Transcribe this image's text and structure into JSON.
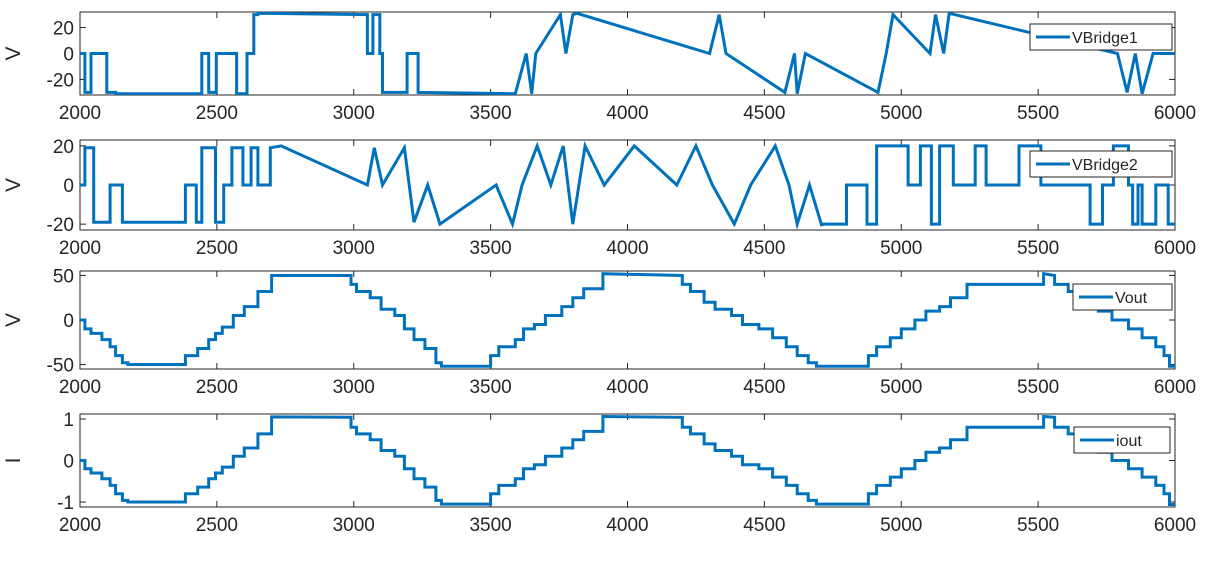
{
  "figure": {
    "background": "#ffffff",
    "axes_color": "#262626",
    "line_color": "#0072BD",
    "panel_count": 4
  },
  "chart_data": [
    {
      "type": "line",
      "ylabel": "V",
      "xlim": [
        2000,
        6000
      ],
      "ylim": [
        -32,
        32
      ],
      "xticks": [
        2000,
        2500,
        3000,
        3500,
        4000,
        4500,
        5000,
        5500,
        6000
      ],
      "yticks": [
        -20,
        0,
        20
      ],
      "legend": {
        "labels": [
          "VBridge1"
        ],
        "placement": "top-right"
      },
      "grid": false,
      "series": [
        {
          "name": "VBridge1",
          "color": "#0072BD",
          "x": [
            2000,
            2018,
            2018,
            2040,
            2040,
            2098,
            2098,
            2130,
            2130,
            2445,
            2445,
            2470,
            2470,
            2498,
            2498,
            2572,
            2572,
            2610,
            2610,
            2635,
            2635,
            2650,
            2650,
            3050,
            3050,
            3070,
            3070,
            3095,
            3095,
            3105,
            3105,
            3195,
            3195,
            3235,
            3235,
            3590,
            3590,
            3630,
            3630,
            3650,
            3650,
            3665,
            3665,
            3755,
            3755,
            3775,
            3775,
            3800,
            3800,
            3815,
            3815,
            4300,
            4300,
            4335,
            4335,
            4360,
            4360,
            4575,
            4575,
            4610,
            4610,
            4620,
            4620,
            4650,
            4650,
            4915,
            4915,
            4945,
            4945,
            4970,
            4970,
            5105,
            5105,
            5125,
            5125,
            5155,
            5155,
            5175,
            5175,
            5790,
            5790,
            5825,
            5825,
            5855,
            5855,
            5880,
            5880,
            5920,
            5920,
            6000
          ],
          "y": [
            0,
            0,
            -30,
            -30,
            0,
            0,
            -30,
            -30,
            -31,
            -31,
            0,
            0,
            -30,
            -30,
            0,
            0,
            -31,
            -31,
            0,
            0,
            30,
            30,
            31,
            30,
            0,
            0,
            30,
            30,
            0,
            0,
            -30,
            -30,
            0,
            0,
            -30,
            -31,
            -31,
            0,
            0,
            -31,
            -31,
            0,
            0,
            30,
            30,
            0,
            0,
            30,
            30,
            31,
            31,
            0,
            0,
            30,
            30,
            0,
            0,
            -30,
            -30,
            0,
            0,
            -31,
            -31,
            0,
            0,
            -30,
            -30,
            0,
            0,
            30,
            30,
            0,
            0,
            30,
            30,
            0,
            0,
            31,
            31,
            0,
            0,
            -30,
            -30,
            0,
            0,
            -31,
            -31,
            0,
            0,
            0
          ]
        }
      ]
    },
    {
      "type": "line",
      "ylabel": "V",
      "xlim": [
        2000,
        6000
      ],
      "ylim": [
        -23,
        23
      ],
      "xticks": [
        2000,
        2500,
        3000,
        3500,
        4000,
        4500,
        5000,
        5500,
        6000
      ],
      "yticks": [
        -20,
        0,
        20
      ],
      "legend": {
        "labels": [
          "VBridge2"
        ],
        "placement": "top-right"
      },
      "grid": false,
      "series": [
        {
          "name": "VBridge2",
          "color": "#0072BD",
          "x": [
            2000,
            2018,
            2018,
            2050,
            2050,
            2110,
            2110,
            2155,
            2155,
            2385,
            2385,
            2425,
            2425,
            2445,
            2445,
            2495,
            2495,
            2525,
            2525,
            2555,
            2555,
            2595,
            2595,
            2625,
            2625,
            2650,
            2650,
            2695,
            2695,
            2735,
            2735,
            3050,
            3050,
            3075,
            3075,
            3105,
            3105,
            3185,
            3185,
            3220,
            3220,
            3270,
            3270,
            3315,
            3315,
            3520,
            3520,
            3580,
            3580,
            3615,
            3615,
            3670,
            3670,
            3720,
            3720,
            3765,
            3765,
            3800,
            3800,
            3845,
            3845,
            3915,
            3915,
            4025,
            4025,
            4180,
            4180,
            4250,
            4250,
            4310,
            4310,
            4390,
            4390,
            4450,
            4450,
            4540,
            4540,
            4590,
            4590,
            4620,
            4620,
            4665,
            4665,
            4710,
            4710,
            4800,
            4800,
            4875,
            4875,
            4910,
            4910,
            5025,
            5025,
            5070,
            5070,
            5110,
            5110,
            5140,
            5140,
            5190,
            5190,
            5270,
            5270,
            5310,
            5310,
            5430,
            5430,
            5510,
            5510,
            5690,
            5690,
            5735,
            5735,
            5775,
            5775,
            5830,
            5830,
            5845,
            5845,
            5865,
            5865,
            5880,
            5880,
            5930,
            5930,
            5975,
            5975,
            6000
          ],
          "y": [
            0,
            0,
            19,
            19,
            -19,
            -19,
            0,
            0,
            -19,
            -19,
            0,
            0,
            -19,
            -19,
            19,
            19,
            -19,
            -19,
            0,
            0,
            19,
            19,
            0,
            0,
            19,
            19,
            0,
            0,
            19,
            20,
            20,
            0,
            0,
            19,
            19,
            0,
            0,
            19,
            19,
            -19,
            -19,
            0,
            0,
            -20,
            -20,
            0,
            0,
            -20,
            -20,
            0,
            0,
            20,
            20,
            0,
            0,
            20,
            20,
            -20,
            -20,
            20,
            20,
            0,
            0,
            20,
            20,
            0,
            0,
            20,
            20,
            0,
            0,
            -20,
            -20,
            0,
            0,
            20,
            20,
            0,
            0,
            -20,
            -20,
            0,
            0,
            -21,
            -20,
            -20,
            0,
            0,
            -20,
            -20,
            20,
            20,
            0,
            0,
            20,
            20,
            -20,
            -20,
            20,
            20,
            0,
            0,
            20,
            20,
            0,
            0,
            20,
            20,
            0,
            0,
            -20,
            -20,
            0,
            0,
            20,
            20,
            0,
            0,
            -20,
            -20,
            0,
            0,
            -20,
            -20,
            0,
            0,
            -20,
            -20
          ]
        }
      ]
    },
    {
      "type": "line",
      "ylabel": "V",
      "xlim": [
        2000,
        6000
      ],
      "ylim": [
        -55,
        55
      ],
      "xticks": [
        2000,
        2500,
        3000,
        3500,
        4000,
        4500,
        5000,
        5500,
        6000
      ],
      "yticks": [
        -50,
        0,
        50
      ],
      "legend": {
        "labels": [
          "Vout"
        ],
        "placement": "top-right"
      },
      "grid": false,
      "series": [
        {
          "name": "Vout",
          "color": "#0072BD",
          "x": [
            2000,
            2018,
            2018,
            2040,
            2040,
            2080,
            2080,
            2110,
            2110,
            2130,
            2130,
            2155,
            2155,
            2175,
            2175,
            2385,
            2385,
            2430,
            2430,
            2470,
            2470,
            2495,
            2495,
            2520,
            2520,
            2560,
            2560,
            2600,
            2600,
            2650,
            2650,
            2700,
            2700,
            2990,
            2990,
            3010,
            3010,
            3060,
            3060,
            3100,
            3100,
            3150,
            3150,
            3185,
            3185,
            3220,
            3220,
            3260,
            3260,
            3300,
            3300,
            3320,
            3320,
            3500,
            3500,
            3530,
            3530,
            3590,
            3590,
            3620,
            3620,
            3660,
            3660,
            3700,
            3700,
            3760,
            3760,
            3800,
            3800,
            3840,
            3840,
            3910,
            3910,
            4200,
            4200,
            4230,
            4230,
            4280,
            4280,
            4320,
            4320,
            4380,
            4380,
            4420,
            4420,
            4480,
            4480,
            4530,
            4530,
            4580,
            4580,
            4620,
            4620,
            4660,
            4660,
            4690,
            4690,
            4880,
            4880,
            4910,
            4910,
            4960,
            4960,
            5000,
            5000,
            5050,
            5050,
            5090,
            5090,
            5140,
            5140,
            5180,
            5180,
            5240,
            5240,
            5520,
            5520,
            5560,
            5560,
            5610,
            5610,
            5660,
            5660,
            5720,
            5720,
            5770,
            5770,
            5830,
            5830,
            5880,
            5880,
            5930,
            5930,
            5960,
            5960,
            5980,
            5980,
            6000
          ],
          "y": [
            0,
            0,
            -10,
            -10,
            -15,
            -15,
            -22,
            -22,
            -30,
            -30,
            -40,
            -40,
            -48,
            -48,
            -50,
            -50,
            -40,
            -40,
            -32,
            -32,
            -22,
            -22,
            -15,
            -15,
            -8,
            -8,
            5,
            5,
            15,
            15,
            32,
            32,
            50,
            50,
            40,
            40,
            32,
            32,
            25,
            25,
            12,
            12,
            5,
            5,
            -10,
            -10,
            -22,
            -22,
            -32,
            -32,
            -48,
            -48,
            -52,
            -52,
            -40,
            -40,
            -30,
            -30,
            -22,
            -22,
            -10,
            -10,
            -5,
            -5,
            5,
            5,
            15,
            15,
            25,
            25,
            35,
            35,
            52,
            50,
            40,
            40,
            32,
            32,
            20,
            20,
            12,
            12,
            5,
            5,
            -5,
            -5,
            -10,
            -10,
            -20,
            -20,
            -30,
            -30,
            -40,
            -40,
            -48,
            -48,
            -52,
            -52,
            -40,
            -40,
            -30,
            -30,
            -20,
            -20,
            -10,
            -10,
            0,
            0,
            10,
            10,
            15,
            15,
            25,
            25,
            40,
            40,
            52,
            50,
            40,
            40,
            32,
            32,
            22,
            22,
            10,
            10,
            0,
            0,
            -10,
            -10,
            -20,
            -20,
            -30,
            -30,
            -40,
            -40,
            -52,
            -52
          ]
        }
      ]
    },
    {
      "type": "line",
      "ylabel": "I",
      "xlim": [
        2000,
        6000
      ],
      "ylim": [
        -1.12,
        1.12
      ],
      "xticks": [
        2000,
        2500,
        3000,
        3500,
        4000,
        4500,
        5000,
        5500,
        6000
      ],
      "yticks": [
        -1,
        0,
        1
      ],
      "legend": {
        "labels": [
          "iout"
        ],
        "placement": "top-right"
      },
      "grid": false,
      "series": [
        {
          "name": "iout",
          "color": "#0072BD",
          "x": [
            2000,
            2018,
            2018,
            2040,
            2040,
            2080,
            2080,
            2110,
            2110,
            2130,
            2130,
            2155,
            2155,
            2175,
            2175,
            2385,
            2385,
            2430,
            2430,
            2470,
            2470,
            2495,
            2495,
            2520,
            2520,
            2560,
            2560,
            2600,
            2600,
            2650,
            2650,
            2700,
            2700,
            2990,
            2990,
            3010,
            3010,
            3060,
            3060,
            3100,
            3100,
            3150,
            3150,
            3185,
            3185,
            3220,
            3220,
            3260,
            3260,
            3300,
            3300,
            3320,
            3320,
            3500,
            3500,
            3530,
            3530,
            3590,
            3590,
            3620,
            3620,
            3660,
            3660,
            3700,
            3700,
            3760,
            3760,
            3800,
            3800,
            3840,
            3840,
            3910,
            3910,
            4200,
            4200,
            4230,
            4230,
            4280,
            4280,
            4320,
            4320,
            4380,
            4380,
            4420,
            4420,
            4480,
            4480,
            4530,
            4530,
            4580,
            4580,
            4620,
            4620,
            4660,
            4660,
            4690,
            4690,
            4880,
            4880,
            4910,
            4910,
            4960,
            4960,
            5000,
            5000,
            5050,
            5050,
            5090,
            5090,
            5140,
            5140,
            5180,
            5180,
            5240,
            5240,
            5520,
            5520,
            5560,
            5560,
            5610,
            5610,
            5660,
            5660,
            5720,
            5720,
            5770,
            5770,
            5830,
            5830,
            5880,
            5880,
            5930,
            5930,
            5960,
            5960,
            5980,
            5980,
            6000
          ],
          "y": [
            0,
            0,
            -0.2,
            -0.2,
            -0.3,
            -0.3,
            -0.44,
            -0.44,
            -0.6,
            -0.6,
            -0.8,
            -0.8,
            -0.96,
            -0.96,
            -1.0,
            -1.0,
            -0.8,
            -0.8,
            -0.64,
            -0.64,
            -0.44,
            -0.44,
            -0.3,
            -0.3,
            -0.16,
            -0.16,
            0.1,
            0.1,
            0.3,
            0.3,
            0.64,
            0.64,
            1.05,
            1.04,
            0.8,
            0.8,
            0.64,
            0.64,
            0.5,
            0.5,
            0.24,
            0.24,
            0.1,
            0.1,
            -0.2,
            -0.2,
            -0.44,
            -0.44,
            -0.64,
            -0.64,
            -0.96,
            -0.96,
            -1.05,
            -1.05,
            -0.8,
            -0.8,
            -0.6,
            -0.6,
            -0.44,
            -0.44,
            -0.2,
            -0.2,
            -0.1,
            -0.1,
            0.1,
            0.1,
            0.3,
            0.3,
            0.5,
            0.5,
            0.7,
            0.7,
            1.06,
            1.04,
            0.8,
            0.8,
            0.64,
            0.64,
            0.4,
            0.4,
            0.24,
            0.24,
            0.1,
            0.1,
            -0.1,
            -0.1,
            -0.2,
            -0.2,
            -0.4,
            -0.4,
            -0.6,
            -0.6,
            -0.8,
            -0.8,
            -0.96,
            -0.96,
            -1.05,
            -1.05,
            -0.8,
            -0.8,
            -0.6,
            -0.6,
            -0.4,
            -0.4,
            -0.2,
            -0.2,
            0,
            0,
            0.2,
            0.2,
            0.3,
            0.3,
            0.5,
            0.5,
            0.8,
            0.8,
            1.06,
            1.04,
            0.8,
            0.8,
            0.64,
            0.64,
            0.44,
            0.44,
            0.2,
            0.2,
            0,
            0,
            -0.2,
            -0.2,
            -0.4,
            -0.4,
            -0.6,
            -0.6,
            -0.8,
            -0.8,
            -1.06,
            -1.06
          ]
        }
      ]
    }
  ]
}
